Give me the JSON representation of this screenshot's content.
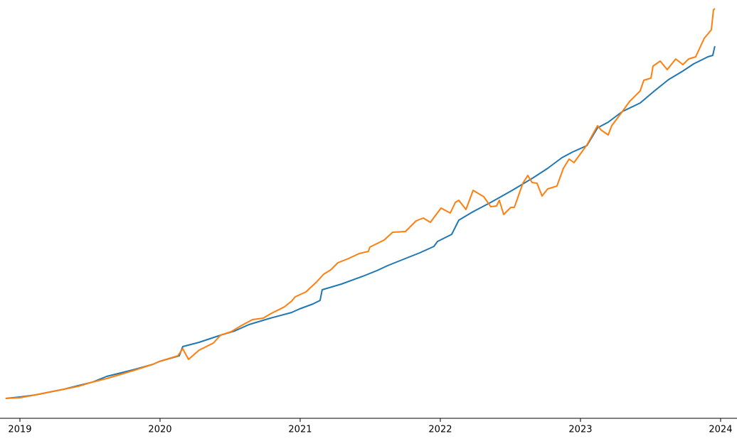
{
  "chart_data": {
    "type": "line",
    "xlim": [
      2018.858,
      2024.117
    ],
    "xticks": [
      2019,
      2020,
      2021,
      2022,
      2023,
      2024
    ],
    "ylim": [
      0,
      589
    ],
    "series": [
      {
        "color": "#1f77b4",
        "x": [
          2018.898,
          2019.0,
          2019.112,
          2019.213,
          2019.315,
          2019.416,
          2019.518,
          2019.619,
          2019.721,
          2019.822,
          2019.949,
          2019.995,
          2020.137,
          2020.162,
          2020.279,
          2020.431,
          2020.533,
          2020.635,
          2020.787,
          2020.939,
          2020.995,
          2021.091,
          2021.142,
          2021.157,
          2021.294,
          2021.447,
          2021.548,
          2021.624,
          2021.751,
          2021.853,
          2021.954,
          2021.98,
          2022.081,
          2022.132,
          2022.234,
          2022.36,
          2022.513,
          2022.665,
          2022.766,
          2022.868,
          2022.944,
          2023.046,
          2023.122,
          2023.198,
          2023.299,
          2023.426,
          2023.528,
          2023.629,
          2023.731,
          2023.807,
          2023.909,
          2023.944,
          2023.959
        ],
        "values": [
          28,
          30,
          33,
          37,
          41,
          46,
          51,
          59,
          64,
          69,
          76,
          80,
          88,
          101,
          107,
          117,
          123,
          132,
          141,
          149,
          154,
          161,
          166,
          181,
          189,
          200,
          208,
          215,
          225,
          233,
          242,
          249,
          259,
          279,
          291,
          304,
          321,
          339,
          352,
          367,
          375,
          384,
          409,
          417,
          432,
          444,
          461,
          477,
          489,
          499,
          509,
          511,
          524
        ]
      },
      {
        "color": "#ff7f0e",
        "x": [
          2018.898,
          2019.0,
          2019.112,
          2019.213,
          2019.315,
          2019.416,
          2019.518,
          2019.619,
          2019.721,
          2019.822,
          2019.949,
          2019.995,
          2020.127,
          2020.162,
          2020.203,
          2020.279,
          2020.381,
          2020.431,
          2020.508,
          2020.584,
          2020.66,
          2020.736,
          2020.787,
          2020.888,
          2020.939,
          2020.964,
          2021.041,
          2021.117,
          2021.168,
          2021.218,
          2021.269,
          2021.345,
          2021.421,
          2021.487,
          2021.497,
          2021.599,
          2021.66,
          2021.751,
          2021.827,
          2021.878,
          2021.929,
          2022.005,
          2022.071,
          2022.107,
          2022.132,
          2022.183,
          2022.234,
          2022.31,
          2022.36,
          2022.401,
          2022.421,
          2022.452,
          2022.503,
          2022.528,
          2022.589,
          2022.624,
          2022.655,
          2022.69,
          2022.726,
          2022.766,
          2022.832,
          2022.878,
          2022.919,
          2022.954,
          2023.046,
          2023.122,
          2023.147,
          2023.198,
          2023.223,
          2023.299,
          2023.35,
          2023.426,
          2023.452,
          2023.503,
          2023.518,
          2023.569,
          2023.619,
          2023.68,
          2023.731,
          2023.772,
          2023.822,
          2023.883,
          2023.934,
          2023.949,
          2023.959
        ],
        "values": [
          28,
          29,
          33,
          37,
          41,
          45,
          51,
          56,
          62,
          68,
          76,
          80,
          88,
          98,
          83,
          96,
          106,
          117,
          122,
          131,
          139,
          141,
          147,
          157,
          165,
          171,
          178,
          192,
          203,
          209,
          219,
          225,
          232,
          235,
          241,
          251,
          262,
          263,
          278,
          282,
          276,
          296,
          289,
          304,
          307,
          294,
          321,
          312,
          298,
          299,
          307,
          287,
          297,
          297,
          331,
          342,
          332,
          331,
          313,
          323,
          327,
          352,
          365,
          360,
          385,
          412,
          406,
          399,
          412,
          432,
          446,
          461,
          476,
          479,
          496,
          503,
          491,
          506,
          498,
          506,
          509,
          535,
          547,
          575,
          577
        ]
      }
    ]
  }
}
